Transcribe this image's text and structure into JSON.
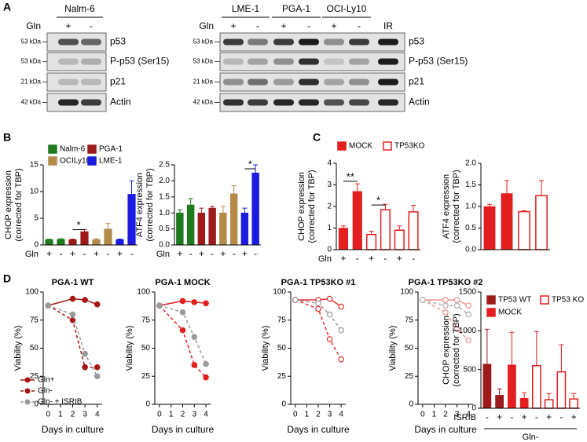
{
  "panel_labels": [
    "A",
    "B",
    "C",
    "D"
  ],
  "blots": [
    {
      "header": [
        "Nalm-6"
      ],
      "gln": "Gln",
      "lanes": [
        "+",
        "-"
      ],
      "kda": [
        "53 kDa",
        "53 kDa",
        "21 kDa",
        "42 kDa"
      ],
      "proteins": [
        "p53",
        "P-p53 (Ser15)",
        "p21",
        "Actin"
      ]
    },
    {
      "header": [
        "LME-1",
        "PGA-1",
        "OCI-Ly10"
      ],
      "gln": "Gln",
      "lanes": [
        "+",
        "-",
        "+",
        "-",
        "+",
        "-",
        "IR"
      ],
      "kda": [
        "53 kDa",
        "53 kDa",
        "21 kDa",
        "42 kDa"
      ],
      "proteins": [
        "p53",
        "P-p53 (Ser15)",
        "p21",
        "Actin"
      ]
    }
  ],
  "chart_data": [
    {
      "type": "bar",
      "ylabel": [
        "CHOP expression",
        "(corrected for TBP)"
      ],
      "xlabel": "Gln",
      "categories": [
        "+",
        "-",
        "+",
        "-",
        "+",
        "-",
        "+",
        "-"
      ],
      "ylim": [
        0,
        15
      ],
      "yticks": [
        0,
        5,
        10,
        15
      ],
      "legend": true,
      "annotations": [
        "*"
      ],
      "series": [
        {
          "name": "Nalm-6",
          "color": "#1e7b1e",
          "values": [
            1.0,
            1.05,
            null,
            null,
            null,
            null,
            null,
            null
          ],
          "errors": [
            0.08,
            0.1,
            null,
            null,
            null,
            null,
            null,
            null
          ]
        },
        {
          "name": "PGA-1",
          "color": "#9e1b1b",
          "values": [
            null,
            null,
            1.0,
            2.5,
            null,
            null,
            null,
            null
          ],
          "errors": [
            null,
            null,
            0.1,
            0.4,
            null,
            null,
            null,
            null
          ]
        },
        {
          "name": "OCILy10",
          "color": "#b38a4a",
          "values": [
            null,
            null,
            null,
            null,
            1.0,
            3.0,
            null,
            null
          ],
          "errors": [
            null,
            null,
            null,
            null,
            0.15,
            1.0,
            null,
            null
          ]
        },
        {
          "name": "LME-1",
          "color": "#1c1ce0",
          "values": [
            null,
            null,
            null,
            null,
            null,
            null,
            1.0,
            9.5
          ],
          "errors": [
            null,
            null,
            null,
            null,
            null,
            null,
            0.1,
            2.5
          ]
        }
      ]
    },
    {
      "type": "bar",
      "ylabel": [
        "ATF4 expression",
        "(corrected for TBP)"
      ],
      "xlabel": "Gln",
      "categories": [
        "+",
        "-",
        "+",
        "-",
        "+",
        "-",
        "+",
        "-"
      ],
      "ylim": [
        0,
        2.5
      ],
      "yticks": [
        {
          "value": 0,
          "label": "0.0"
        },
        0.5,
        {
          "value": 1,
          "label": "1.0"
        },
        1.5,
        {
          "value": 2,
          "label": "2.0"
        },
        2.5
      ],
      "legend": false,
      "annotations": [
        "*"
      ],
      "series": [
        {
          "name": "Nalm-6",
          "color": "#1e7b1e",
          "values": [
            1.0,
            1.25,
            null,
            null,
            null,
            null,
            null,
            null
          ],
          "errors": [
            0.1,
            0.2,
            null,
            null,
            null,
            null,
            null,
            null
          ]
        },
        {
          "name": "PGA-1",
          "color": "#9e1b1b",
          "values": [
            null,
            null,
            1.0,
            1.15,
            null,
            null,
            null,
            null
          ],
          "errors": [
            null,
            null,
            0.15,
            0.05,
            null,
            null,
            null,
            null
          ]
        },
        {
          "name": "OCILy10",
          "color": "#b38a4a",
          "values": [
            null,
            null,
            null,
            null,
            1.0,
            1.6,
            null,
            null
          ],
          "errors": [
            null,
            null,
            null,
            null,
            0.2,
            0.25,
            null,
            null
          ]
        },
        {
          "name": "LME-1",
          "color": "#1c1ce0",
          "values": [
            null,
            null,
            null,
            null,
            null,
            null,
            1.0,
            2.25
          ],
          "errors": [
            null,
            null,
            null,
            null,
            null,
            null,
            0.15,
            0.25
          ]
        }
      ]
    },
    {
      "type": "bar",
      "ylabel": [
        "CHOP expression",
        "(corrected for TBP)"
      ],
      "xlabel": "Gln",
      "categories": [
        "+",
        "-",
        "+",
        "-",
        "+",
        "-"
      ],
      "ylim": [
        0,
        4
      ],
      "yticks": [
        0,
        1,
        2,
        3,
        4
      ],
      "legend": true,
      "annotations": [
        "**",
        "*"
      ],
      "series": [
        {
          "name": "MOCK",
          "color": "#e31e1e",
          "values": [
            1.0,
            2.7,
            null,
            null,
            null,
            null
          ],
          "errors": [
            0.1,
            0.35,
            null,
            null,
            null,
            null
          ]
        },
        {
          "name": "TP53KO",
          "color": "#e31e1e",
          "outline": true,
          "values": [
            null,
            null,
            0.7,
            1.85,
            0.9,
            1.75
          ],
          "errors": [
            null,
            null,
            0.15,
            0.25,
            0.2,
            0.3
          ]
        }
      ]
    },
    {
      "type": "bar",
      "ylabel": [
        "ATF4 expression",
        "(corrected for TBP)"
      ],
      "categories": [
        null,
        null,
        null,
        null
      ],
      "ylim": [
        0,
        2
      ],
      "yticks": [
        {
          "value": 0,
          "label": "0.0"
        },
        0.5,
        {
          "value": 1,
          "label": "1.0"
        },
        1.5,
        {
          "value": 2,
          "label": "2.0"
        }
      ],
      "legend": false,
      "series": [
        {
          "name": "MOCK",
          "color": "#e31e1e",
          "values": [
            1.0,
            1.3,
            null,
            null
          ],
          "errors": [
            0.05,
            0.3,
            null,
            null
          ]
        },
        {
          "name": "TP53KO",
          "color": "#e31e1e",
          "outline": true,
          "values": [
            null,
            null,
            0.88,
            1.25
          ],
          "errors": [
            null,
            null,
            0.02,
            0.35
          ]
        }
      ]
    },
    {
      "type": "line",
      "title": "PGA-1 WT",
      "ylabel": "Viability (%)",
      "xlabel": "Days in culture",
      "x": [
        0,
        2,
        3,
        4
      ],
      "xlim": [
        -0.4,
        4.4
      ],
      "xticks": [
        0,
        1,
        2,
        3,
        4
      ],
      "ylim": [
        0,
        100
      ],
      "yticks": [
        0,
        25,
        50,
        75,
        100
      ],
      "legend": true,
      "series": [
        {
          "name": "Gln+",
          "color": "#a81515",
          "marker": "filled",
          "values": [
            88,
            94,
            93,
            89
          ]
        },
        {
          "name": "Gln-",
          "color": "#a81515",
          "marker": "filled",
          "dash": true,
          "values": [
            88,
            75,
            33,
            33
          ]
        },
        {
          "name": "Gln- + ISRIB",
          "color": "#9a9a9a",
          "marker": "filled",
          "dash": true,
          "values": [
            88,
            80,
            45,
            25
          ]
        }
      ]
    },
    {
      "type": "line",
      "title": "PGA-1 MOCK",
      "ylabel": "Viability (%)",
      "xlabel": "Days in culture",
      "x": [
        0,
        2,
        3,
        4
      ],
      "xlim": [
        -0.4,
        4.4
      ],
      "xticks": [
        0,
        1,
        2,
        3,
        4
      ],
      "ylim": [
        0,
        100
      ],
      "yticks": [
        0,
        25,
        50,
        75,
        100
      ],
      "legend": false,
      "series": [
        {
          "name": "Gln+",
          "color": "#e31e1e",
          "marker": "filled",
          "values": [
            88,
            92,
            91,
            90
          ]
        },
        {
          "name": "Gln-",
          "color": "#e31e1e",
          "marker": "filled",
          "dash": true,
          "values": [
            88,
            66,
            35,
            24
          ]
        },
        {
          "name": "Gln- + ISRIB",
          "color": "#9a9a9a",
          "marker": "filled",
          "dash": true,
          "values": [
            88,
            82,
            60,
            36
          ]
        }
      ]
    },
    {
      "type": "line",
      "title": "PGA-1 TP53KO #1",
      "ylabel": "Viability (%)",
      "xlabel": "Days in culture",
      "x": [
        0,
        2,
        3,
        4
      ],
      "xlim": [
        -0.4,
        4.4
      ],
      "xticks": [
        0,
        1,
        2,
        3,
        4
      ],
      "ylim": [
        0,
        100
      ],
      "yticks": [
        0,
        25,
        50,
        75,
        100
      ],
      "legend": false,
      "series": [
        {
          "name": "Gln+",
          "color": "#e33030",
          "marker": "open",
          "values": [
            93,
            93,
            94,
            87
          ]
        },
        {
          "name": "Gln-",
          "color": "#e33030",
          "marker": "open",
          "dash": true,
          "values": [
            93,
            85,
            58,
            40
          ]
        },
        {
          "name": "Gln- + ISRIB",
          "color": "#9a9a9a",
          "marker": "open",
          "dash": true,
          "values": [
            93,
            90,
            80,
            66
          ]
        }
      ]
    },
    {
      "type": "line",
      "title": "PGA-1 TP53KO #2",
      "ylabel": "Viability (%)",
      "xlabel": "Days in culture",
      "x": [
        0,
        2,
        3,
        4
      ],
      "xlim": [
        -0.4,
        4.4
      ],
      "xticks": [
        0,
        1,
        2,
        3,
        4
      ],
      "ylim": [
        0,
        100
      ],
      "yticks": [
        0,
        25,
        50,
        75,
        100
      ],
      "legend": false,
      "series": [
        {
          "name": "Gln+",
          "color": "#f09090",
          "marker": "open",
          "values": [
            93,
            93,
            93,
            88
          ]
        },
        {
          "name": "Gln-",
          "color": "#f09090",
          "marker": "open",
          "dash": true,
          "values": [
            93,
            82,
            67,
            57
          ]
        },
        {
          "name": "Gln- + ISRIB",
          "color": "#aaaaaa",
          "marker": "open",
          "dash": true,
          "values": [
            93,
            88,
            88,
            80
          ]
        }
      ]
    },
    {
      "type": "bar",
      "ylabel": [
        "CHOP expression",
        "(corrected for TBP)"
      ],
      "xlabel": "ISRIB",
      "group_label": "Gln-",
      "categories": [
        "-",
        "+",
        "-",
        "+",
        "-",
        "+",
        "-",
        "+"
      ],
      "ylim": [
        0,
        1500
      ],
      "yticks": [
        0,
        500,
        1000,
        1500
      ],
      "legend": true,
      "series": [
        {
          "name": "TP53 WT",
          "color": "#9e1b1b",
          "values": [
            570,
            170,
            null,
            null,
            null,
            null,
            null,
            null
          ],
          "errors": [
            450,
            80,
            null,
            null,
            null,
            null,
            null,
            null
          ]
        },
        {
          "name": "MOCK",
          "color": "#e31e1e",
          "values": [
            null,
            null,
            560,
            130,
            null,
            null,
            null,
            null
          ],
          "errors": [
            null,
            null,
            420,
            70,
            null,
            null,
            null,
            null
          ]
        },
        {
          "name": "TP53 KO",
          "color": "#e31e1e",
          "outline": true,
          "values": [
            null,
            null,
            null,
            null,
            550,
            110,
            470,
            120
          ],
          "errors": [
            null,
            null,
            null,
            null,
            440,
            80,
            350,
            70
          ]
        }
      ]
    }
  ]
}
